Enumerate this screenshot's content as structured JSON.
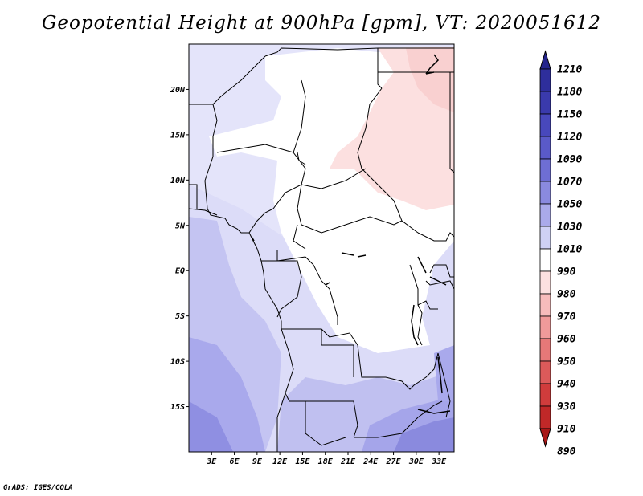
{
  "title": "Geopotential Height at 900hPa [gpm], VT: 2020051612",
  "credit": "GrADS: IGES/COLA",
  "map": {
    "lon_labels": [
      "3E",
      "6E",
      "9E",
      "12E",
      "15E",
      "18E",
      "21E",
      "24E",
      "27E",
      "30E",
      "33E"
    ],
    "lat_labels": [
      "20N",
      "15N",
      "10N",
      "5N",
      "EQ",
      "5S",
      "10S",
      "15S"
    ],
    "lon_range": [
      0,
      35
    ],
    "lat_range": [
      -20,
      25
    ]
  },
  "legend": {
    "levels": [
      "1210",
      "1180",
      "1150",
      "1120",
      "1090",
      "1070",
      "1050",
      "1030",
      "1010",
      "990",
      "980",
      "970",
      "960",
      "950",
      "940",
      "930",
      "910",
      "890"
    ],
    "colors": [
      "#24248c",
      "#2e2e9c",
      "#3a3aac",
      "#4848bc",
      "#5a5ac8",
      "#6e6ed4",
      "#8a8adf",
      "#aaaaea",
      "#cfd1f5",
      "#ffffff",
      "#fce0e0",
      "#f7bcbc",
      "#f09a9a",
      "#e67878",
      "#dc5a5a",
      "#d03c3c",
      "#c02828",
      "#a81818"
    ]
  }
}
